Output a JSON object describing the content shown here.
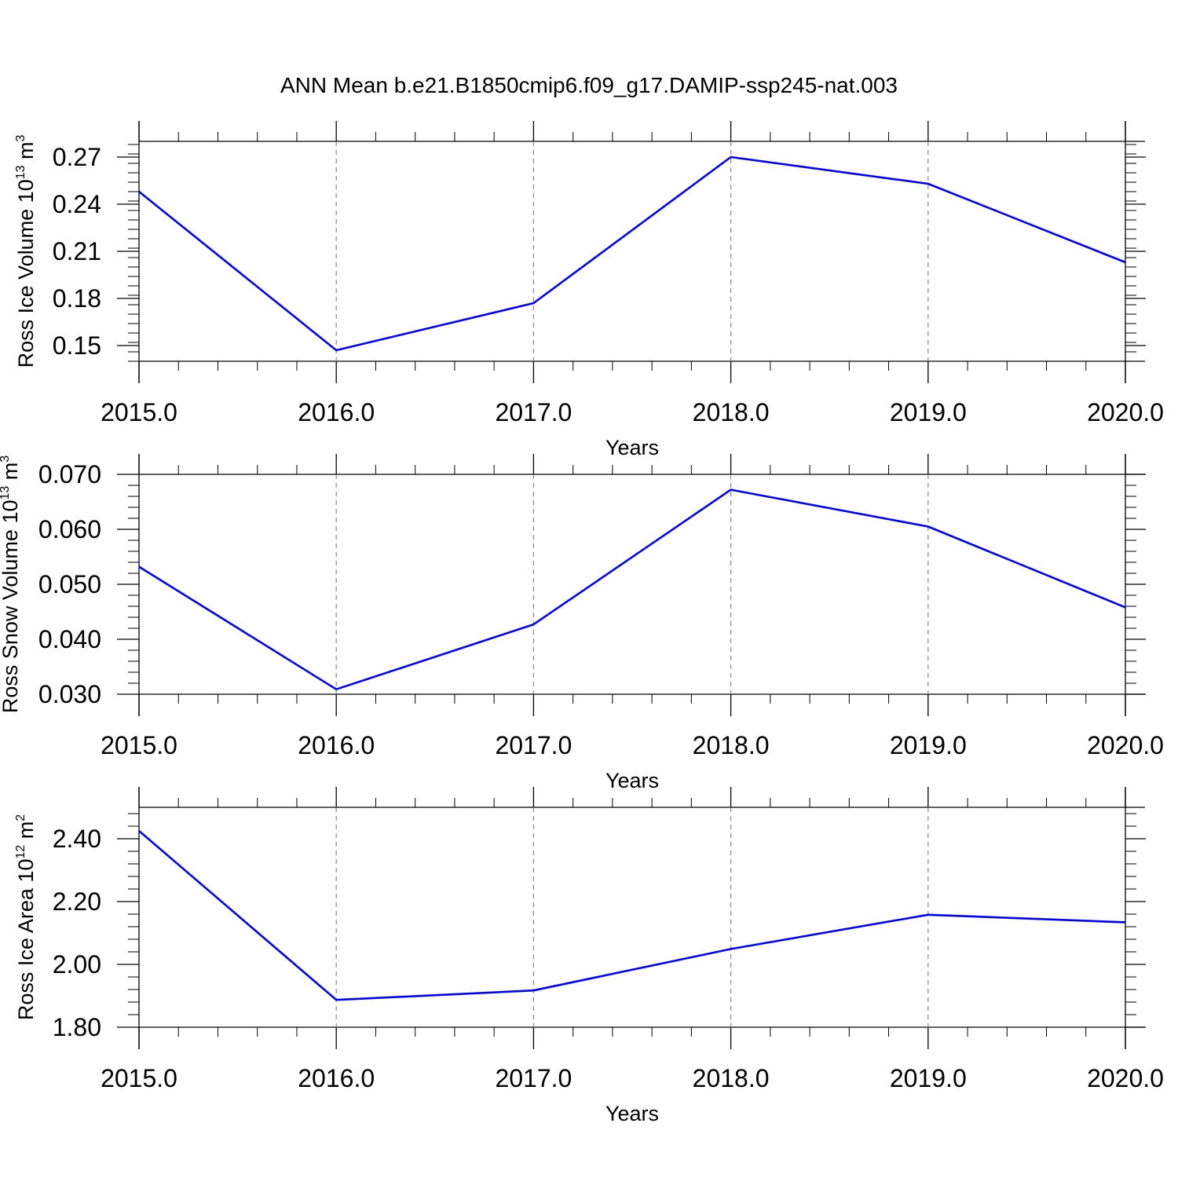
{
  "title": "ANN Mean b.e21.B1850cmip6.f09_g17.DAMIP-ssp245-nat.003",
  "line_color": "#0000ff",
  "chart_data": [
    {
      "type": "line",
      "xlabel": "Years",
      "ylabel": {
        "text": "Ross Ice Volume 10",
        "sup": "13",
        "unit": " m",
        "unit_sup": "3"
      },
      "x": [
        2015,
        2016,
        2017,
        2018,
        2019,
        2020
      ],
      "x_tick_labels": [
        "2015.0",
        "2016.0",
        "2017.0",
        "2018.0",
        "2019.0",
        "2020.0"
      ],
      "xlim": [
        2015,
        2020
      ],
      "y_tick_values": [
        0.15,
        0.18,
        0.21,
        0.24,
        0.27
      ],
      "y_tick_labels": [
        "0.15",
        "0.18",
        "0.21",
        "0.24",
        "0.27"
      ],
      "ylim": [
        0.14,
        0.28
      ],
      "y_minor_step": 0.006,
      "grid": "vertical-dashed",
      "series": [
        {
          "values": [
            0.248,
            0.147,
            0.177,
            0.27,
            0.253,
            0.203
          ]
        }
      ]
    },
    {
      "type": "line",
      "xlabel": "Years",
      "ylabel": {
        "text": "Ross Snow Volume 10",
        "sup": "13",
        "unit": " m",
        "unit_sup": "3"
      },
      "x": [
        2015,
        2016,
        2017,
        2018,
        2019,
        2020
      ],
      "x_tick_labels": [
        "2015.0",
        "2016.0",
        "2017.0",
        "2018.0",
        "2019.0",
        "2020.0"
      ],
      "xlim": [
        2015,
        2020
      ],
      "y_tick_values": [
        0.03,
        0.04,
        0.05,
        0.06,
        0.07
      ],
      "y_tick_labels": [
        "0.030",
        "0.040",
        "0.050",
        "0.060",
        "0.070"
      ],
      "ylim": [
        0.03,
        0.07
      ],
      "y_minor_step": 0.002,
      "grid": "vertical-dashed",
      "series": [
        {
          "values": [
            0.0532,
            0.0309,
            0.0427,
            0.0672,
            0.0605,
            0.0458
          ]
        }
      ]
    },
    {
      "type": "line",
      "xlabel": "Years",
      "ylabel": {
        "text": "Ross Ice Area 10",
        "sup": "12",
        "unit": " m",
        "unit_sup": "2"
      },
      "x": [
        2015,
        2016,
        2017,
        2018,
        2019,
        2020
      ],
      "x_tick_labels": [
        "2015.0",
        "2016.0",
        "2017.0",
        "2018.0",
        "2019.0",
        "2020.0"
      ],
      "xlim": [
        2015,
        2020
      ],
      "y_tick_values": [
        1.8,
        2.0,
        2.2,
        2.4
      ],
      "y_tick_labels": [
        "1.80",
        "2.00",
        "2.20",
        "2.40"
      ],
      "ylim": [
        1.8,
        2.5
      ],
      "y_minor_step": 0.04,
      "grid": "vertical-dashed",
      "series": [
        {
          "values": [
            2.425,
            1.887,
            1.917,
            2.049,
            2.158,
            2.134
          ]
        }
      ]
    }
  ]
}
